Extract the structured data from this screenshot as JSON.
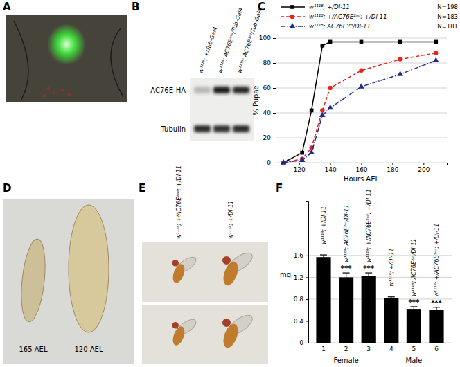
{
  "panel_labels": [
    "A",
    "B",
    "C",
    "D",
    "E",
    "F"
  ],
  "blot": {
    "lanes": [
      "w¹¹¹⁸; +/Tub-Gal4",
      "w¹¹¹⁸; AC76E²ⁿᵈ/Tub-Gal4",
      "w¹¹¹⁸; AC76E³ʳᵈ/Tub-Gal4"
    ],
    "rows": [
      "AC76E-HA",
      "Tubulin"
    ]
  },
  "larvae": {
    "labels": [
      "165 AEL",
      "120 AEL"
    ]
  },
  "flies": {
    "labels": [
      "w¹¹¹⁸; +/AC76E²ⁿᵈ; +/Dl-11",
      "w¹¹¹⁸; +/Dl-11"
    ]
  },
  "chart_data": [
    {
      "type": "line",
      "x_label": "Hours AEL",
      "y_label": "% Pupae",
      "x": [
        110,
        122,
        128,
        135,
        140,
        160,
        185,
        208
      ],
      "xlim": [
        105,
        215
      ],
      "xticks": [
        120,
        140,
        160,
        180,
        200
      ],
      "ylim": [
        0,
        100
      ],
      "yticks": [
        0,
        20,
        40,
        60,
        80,
        100
      ],
      "grid": true,
      "series": [
        {
          "name": "w¹¹¹⁸; +/Dl-11",
          "n": "N=198",
          "color": "#000000",
          "marker": "square",
          "line_style": "solid",
          "values": [
            0,
            8,
            42,
            94,
            97,
            97,
            97,
            97
          ]
        },
        {
          "name": "w¹¹¹⁸; +/AC76E²ⁿᵈ; +/Dl-11",
          "n": "N=183",
          "color": "#e8231a",
          "marker": "circle",
          "line_style": "dashed",
          "values": [
            0,
            3,
            12,
            42,
            60,
            74,
            83,
            88
          ]
        },
        {
          "name": "w¹¹¹⁸; AC76E³ʳᵈ/Dl-11",
          "n": "N=181",
          "color": "#1f2b8f",
          "marker": "triangle",
          "line_style": "dashdot",
          "values": [
            0,
            2,
            8,
            38,
            44,
            61,
            71,
            82
          ]
        }
      ]
    },
    {
      "type": "bar",
      "y_label": "mg",
      "categories": [
        "1",
        "2",
        "3",
        "4",
        "5",
        "6"
      ],
      "values": [
        1.57,
        1.2,
        1.22,
        0.82,
        0.62,
        0.6
      ],
      "errors": [
        0.04,
        0.08,
        0.06,
        0.02,
        0.04,
        0.05
      ],
      "significance": [
        null,
        "***",
        "***",
        null,
        "***",
        "***"
      ],
      "genotypes": [
        "w¹¹¹⁸; +/Dl-11",
        "w¹¹¹⁸; AC76E³ʳᵈ/Dl-11",
        "w¹¹¹⁸; +/AC76E²ⁿᵈ; +/Dl-11",
        "w¹¹¹⁸; +/Dl-11",
        "w¹¹¹⁸; AC76E³ʳᵈ/Dl-11",
        "w¹¹¹⁸; +/AC76E²ⁿᵈ; +/Dl-11"
      ],
      "groups": [
        {
          "name": "Female",
          "categories": [
            "1",
            "2",
            "3"
          ]
        },
        {
          "name": "Male",
          "categories": [
            "4",
            "5",
            "6"
          ]
        }
      ],
      "color": "#000000",
      "ylim": [
        0,
        2.6
      ],
      "yticks": [
        0,
        0.4,
        0.8,
        1.2,
        1.6
      ],
      "grid": true
    }
  ]
}
